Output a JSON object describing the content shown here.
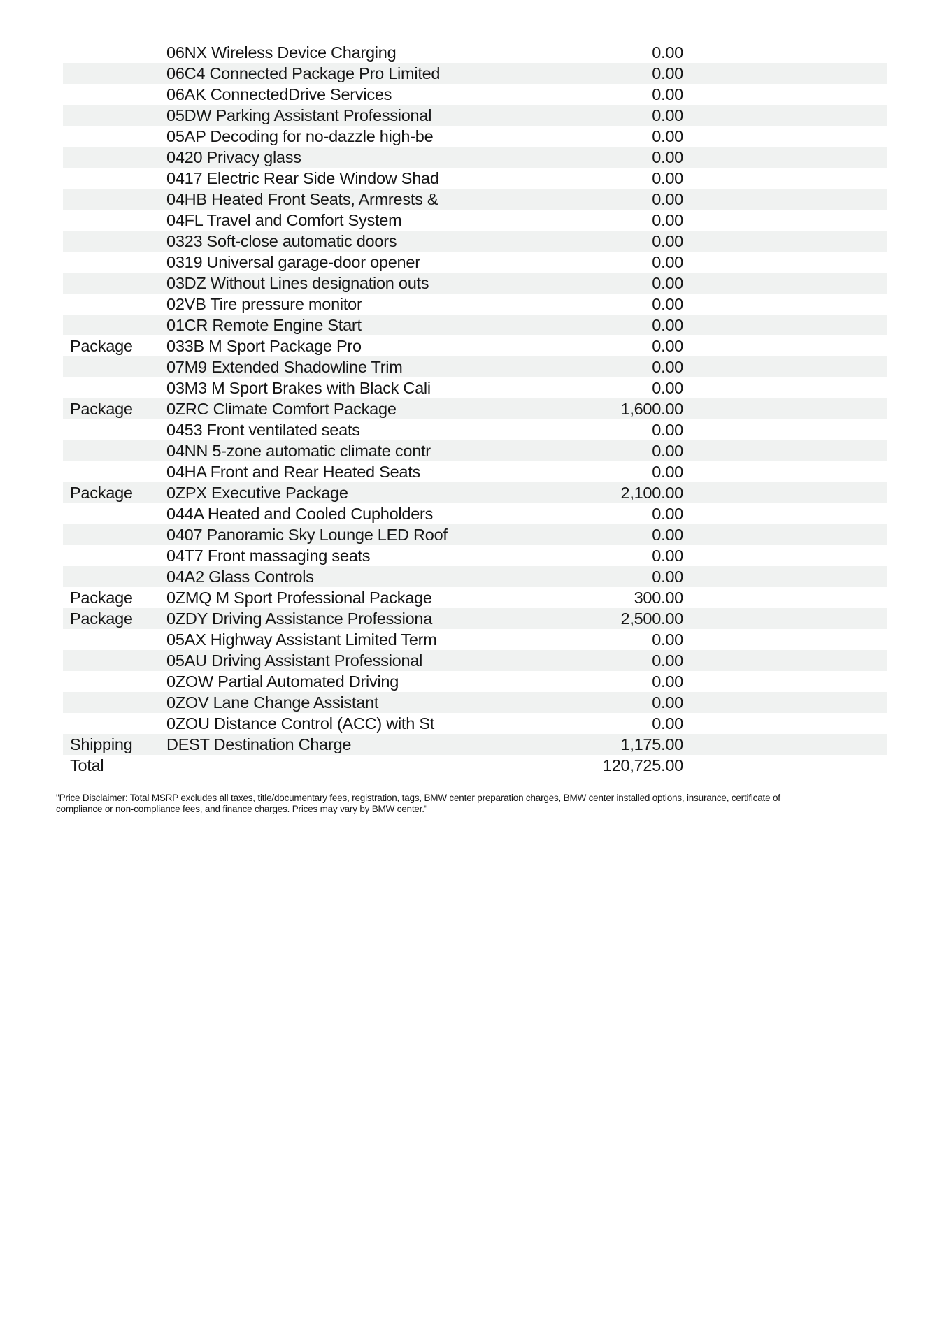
{
  "page": {
    "background_color": "#ffffff",
    "stripe_color": "#f0f2f1",
    "text_color": "#161616"
  },
  "table": {
    "rows": [
      {
        "category": "",
        "item": "06NX Wireless Device Charging",
        "price": "0.00",
        "shaded": false
      },
      {
        "category": "",
        "item": "06C4 Connected Package Pro Limited",
        "price": "0.00",
        "shaded": true
      },
      {
        "category": "",
        "item": "06AK ConnectedDrive Services",
        "price": "0.00",
        "shaded": false
      },
      {
        "category": "",
        "item": "05DW Parking Assistant Professional",
        "price": "0.00",
        "shaded": true
      },
      {
        "category": "",
        "item": "05AP Decoding for no-dazzle high-be",
        "price": "0.00",
        "shaded": false
      },
      {
        "category": "",
        "item": "0420 Privacy glass",
        "price": "0.00",
        "shaded": true
      },
      {
        "category": "",
        "item": "0417 Electric Rear Side Window Shad",
        "price": "0.00",
        "shaded": false
      },
      {
        "category": "",
        "item": "04HB Heated Front Seats, Armrests &",
        "price": "0.00",
        "shaded": true
      },
      {
        "category": "",
        "item": "04FL Travel and Comfort System",
        "price": "0.00",
        "shaded": false
      },
      {
        "category": "",
        "item": "0323 Soft-close automatic doors",
        "price": "0.00",
        "shaded": true
      },
      {
        "category": "",
        "item": "0319 Universal garage-door opener",
        "price": "0.00",
        "shaded": false
      },
      {
        "category": "",
        "item": "03DZ Without Lines designation outs",
        "price": "0.00",
        "shaded": true
      },
      {
        "category": "",
        "item": "02VB Tire pressure monitor",
        "price": "0.00",
        "shaded": false
      },
      {
        "category": "",
        "item": "01CR Remote Engine Start",
        "price": "0.00",
        "shaded": true
      },
      {
        "category": "Package",
        "item": "033B M Sport Package Pro",
        "price": "0.00",
        "shaded": false
      },
      {
        "category": "",
        "item": "07M9 Extended Shadowline Trim",
        "price": "0.00",
        "shaded": true
      },
      {
        "category": "",
        "item": "03M3 M Sport Brakes with Black Cali",
        "price": "0.00",
        "shaded": false
      },
      {
        "category": "Package",
        "item": "0ZRC Climate Comfort Package",
        "price": "1,600.00",
        "shaded": true
      },
      {
        "category": "",
        "item": "0453 Front ventilated seats",
        "price": "0.00",
        "shaded": false
      },
      {
        "category": "",
        "item": "04NN 5-zone automatic climate contr",
        "price": "0.00",
        "shaded": true
      },
      {
        "category": "",
        "item": "04HA Front and Rear Heated Seats",
        "price": "0.00",
        "shaded": false
      },
      {
        "category": "Package",
        "item": "0ZPX Executive Package",
        "price": "2,100.00",
        "shaded": true
      },
      {
        "category": "",
        "item": "044A Heated and Cooled Cupholders",
        "price": "0.00",
        "shaded": false
      },
      {
        "category": "",
        "item": "0407 Panoramic Sky Lounge LED Roof",
        "price": "0.00",
        "shaded": true
      },
      {
        "category": "",
        "item": "04T7 Front massaging seats",
        "price": "0.00",
        "shaded": false
      },
      {
        "category": "",
        "item": "04A2 Glass Controls",
        "price": "0.00",
        "shaded": true
      },
      {
        "category": "Package",
        "item": "0ZMQ M Sport Professional Package",
        "price": "300.00",
        "shaded": false
      },
      {
        "category": "Package",
        "item": "0ZDY Driving Assistance Professiona",
        "price": "2,500.00",
        "shaded": true
      },
      {
        "category": "",
        "item": "05AX Highway Assistant Limited Term",
        "price": "0.00",
        "shaded": false
      },
      {
        "category": "",
        "item": "05AU Driving Assistant Professional",
        "price": "0.00",
        "shaded": true
      },
      {
        "category": "",
        "item": "0ZOW Partial Automated Driving",
        "price": "0.00",
        "shaded": false
      },
      {
        "category": "",
        "item": "0ZOV Lane Change Assistant",
        "price": "0.00",
        "shaded": true
      },
      {
        "category": "",
        "item": "0ZOU Distance Control (ACC) with St",
        "price": "0.00",
        "shaded": false
      },
      {
        "category": "Shipping",
        "item": "DEST Destination Charge",
        "price": "1,175.00",
        "shaded": true
      },
      {
        "category": "Total",
        "item": "",
        "price": "120,725.00",
        "shaded": false
      }
    ]
  },
  "disclaimer": {
    "line1": "\"Price Disclaimer: Total MSRP excludes all taxes, title/documentary fees, registration, tags, BMW center preparation charges, BMW center installed options, insurance, certificate of",
    "line2": "compliance or non-compliance fees, and finance charges. Prices may vary by BMW center.\""
  }
}
